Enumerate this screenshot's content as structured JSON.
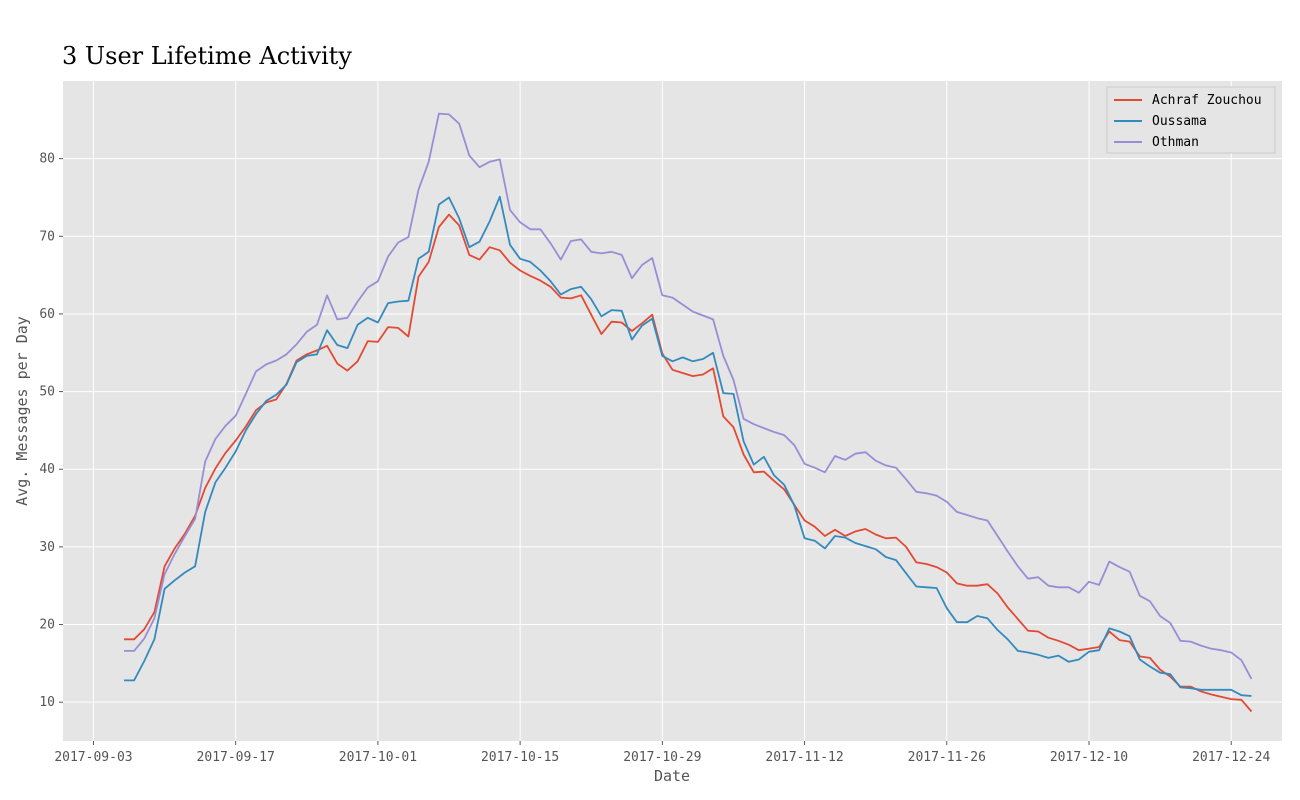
{
  "chart_data": {
    "type": "line",
    "title": "3 User Lifetime Activity",
    "xlabel": "Date",
    "ylabel": "Avg. Messages per Day",
    "x_start": "2017-09-06",
    "x_step_days": 1,
    "xlim": [
      "2017-08-31",
      "2017-12-29"
    ],
    "ylim": [
      5,
      90
    ],
    "xticks": [
      "2017-09-03",
      "2017-09-17",
      "2017-10-01",
      "2017-10-15",
      "2017-10-29",
      "2017-11-12",
      "2017-11-26",
      "2017-12-10",
      "2017-12-24"
    ],
    "yticks": [
      10,
      20,
      30,
      40,
      50,
      60,
      70,
      80
    ],
    "grid": true,
    "legend_position": "top-right",
    "series": [
      {
        "name": "Achraf Zouchou",
        "color": "#E24A33",
        "values": [
          18.1,
          18.1,
          19.4,
          21.6,
          27.5,
          29.8,
          31.7,
          34.0,
          37.6,
          40.1,
          42.1,
          43.7,
          45.5,
          47.6,
          48.6,
          49.0,
          51.0,
          54.0,
          54.8,
          55.3,
          55.9,
          53.6,
          52.7,
          53.9,
          56.5,
          56.4,
          58.3,
          58.2,
          57.1,
          64.8,
          66.7,
          71.2,
          72.8,
          71.4,
          67.6,
          67.0,
          68.6,
          68.2,
          66.6,
          65.6,
          64.9,
          64.3,
          63.5,
          62.1,
          62.0,
          62.4,
          59.9,
          57.4,
          59.0,
          58.9,
          57.8,
          58.8,
          59.9,
          54.9,
          52.8,
          52.4,
          52.0,
          52.2,
          53.0,
          46.8,
          45.4,
          41.9,
          39.6,
          39.7,
          38.5,
          37.4,
          35.4,
          33.4,
          32.6,
          31.4,
          32.2,
          31.4,
          32.0,
          32.3,
          31.6,
          31.1,
          31.2,
          30.0,
          28.0,
          27.8,
          27.4,
          26.7,
          25.3,
          25.0,
          25.0,
          25.2,
          24.0,
          22.2,
          20.7,
          19.2,
          19.1,
          18.3,
          17.9,
          17.4,
          16.7,
          16.9,
          17.1,
          19.1,
          18.0,
          17.8,
          15.9,
          15.7,
          14.2,
          13.3,
          12.0,
          12.0,
          11.4,
          11.0,
          10.7,
          10.4,
          10.3,
          8.8
        ]
      },
      {
        "name": "Oussama",
        "color": "#348ABD",
        "values": [
          12.8,
          12.8,
          15.3,
          18.1,
          24.6,
          25.7,
          26.7,
          27.5,
          34.5,
          38.3,
          40.2,
          42.3,
          45.0,
          47.1,
          48.8,
          49.6,
          50.9,
          53.8,
          54.6,
          54.8,
          57.9,
          56.0,
          55.6,
          58.6,
          59.5,
          58.9,
          61.4,
          61.6,
          61.7,
          67.1,
          68.0,
          74.1,
          75.0,
          72.3,
          68.6,
          69.3,
          71.9,
          75.1,
          68.9,
          67.1,
          66.7,
          65.6,
          64.2,
          62.5,
          63.2,
          63.5,
          61.9,
          59.7,
          60.5,
          60.4,
          56.7,
          58.5,
          59.4,
          54.6,
          53.9,
          54.4,
          53.9,
          54.2,
          55.0,
          49.8,
          49.7,
          43.6,
          40.6,
          41.6,
          39.2,
          38.0,
          35.3,
          31.1,
          30.8,
          29.8,
          31.4,
          31.2,
          30.5,
          30.1,
          29.7,
          28.7,
          28.3,
          26.6,
          24.9,
          24.8,
          24.7,
          22.1,
          20.3,
          20.3,
          21.1,
          20.8,
          19.3,
          18.1,
          16.6,
          16.4,
          16.1,
          15.7,
          16.0,
          15.2,
          15.5,
          16.5,
          16.7,
          19.5,
          19.1,
          18.5,
          15.5,
          14.6,
          13.8,
          13.6,
          11.9,
          11.8,
          11.6,
          11.6,
          11.6,
          11.6,
          10.9,
          10.8
        ]
      },
      {
        "name": "Othman",
        "color": "#988ED5",
        "values": [
          16.6,
          16.6,
          18.2,
          20.8,
          26.5,
          29.1,
          31.4,
          33.6,
          41.0,
          43.9,
          45.6,
          46.9,
          49.7,
          52.6,
          53.5,
          54.0,
          54.8,
          56.1,
          57.7,
          58.6,
          62.4,
          59.3,
          59.5,
          61.6,
          63.4,
          64.2,
          67.4,
          69.2,
          69.9,
          76.0,
          79.6,
          85.8,
          85.7,
          84.5,
          80.4,
          78.9,
          79.6,
          79.9,
          73.4,
          71.8,
          70.9,
          70.9,
          69.1,
          67.0,
          69.4,
          69.6,
          68.0,
          67.8,
          68.0,
          67.6,
          64.6,
          66.3,
          67.2,
          62.4,
          62.1,
          61.2,
          60.3,
          59.8,
          59.3,
          54.6,
          51.5,
          46.5,
          45.8,
          45.3,
          44.8,
          44.4,
          43.1,
          40.7,
          40.2,
          39.6,
          41.7,
          41.2,
          42.0,
          42.2,
          41.1,
          40.5,
          40.2,
          38.7,
          37.1,
          36.9,
          36.6,
          35.8,
          34.5,
          34.1,
          33.7,
          33.4,
          31.4,
          29.4,
          27.5,
          25.9,
          26.1,
          25.0,
          24.8,
          24.8,
          24.1,
          25.5,
          25.1,
          28.1,
          27.4,
          26.8,
          23.7,
          23.0,
          21.1,
          20.2,
          17.9,
          17.8,
          17.3,
          16.9,
          16.7,
          16.4,
          15.4,
          13.0
        ]
      }
    ]
  }
}
